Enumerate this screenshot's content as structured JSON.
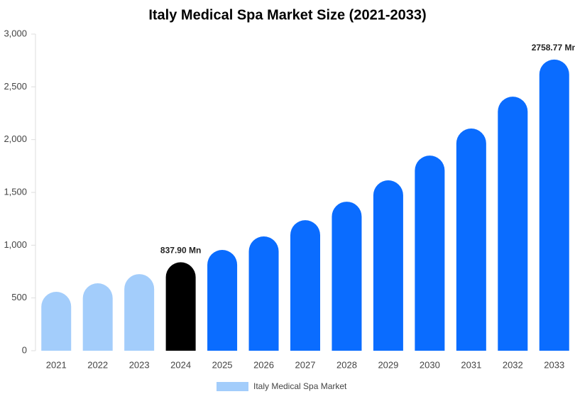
{
  "chart_data": {
    "type": "bar",
    "title": "Italy Medical Spa Market Size (2021-2033)",
    "categories": [
      "2021",
      "2022",
      "2023",
      "2024",
      "2025",
      "2026",
      "2027",
      "2028",
      "2029",
      "2030",
      "2031",
      "2032",
      "2033"
    ],
    "series": [
      {
        "name": "Italy Medical Spa Market",
        "color": "#a3cdfb",
        "values": [
          558,
          639,
          726,
          837.9,
          955,
          1083,
          1237,
          1412,
          1614,
          1849,
          2105,
          2407,
          2758.77
        ],
        "value_labels": [
          null,
          null,
          null,
          "837.90 Mn",
          null,
          null,
          null,
          null,
          null,
          null,
          null,
          null,
          "2758.77 Mn"
        ],
        "colors": [
          "#a3cdfb",
          "#a3cdfb",
          "#a3cdfb",
          "#000000",
          "#0a6cff",
          "#0a6cff",
          "#0a6cff",
          "#0a6cff",
          "#0a6cff",
          "#0a6cff",
          "#0a6cff",
          "#0a6cff",
          "#0a6cff"
        ]
      }
    ],
    "ylim": [
      0,
      3000
    ],
    "yticks": [
      0,
      {
        "value": 500,
        "label": "500"
      },
      {
        "value": 1000,
        "label": "1,000"
      },
      {
        "value": 1500,
        "label": "1,500"
      },
      {
        "value": 2000,
        "label": "2,000"
      },
      {
        "value": 2500,
        "label": "2,500"
      },
      {
        "value": 3000,
        "label": "3,000"
      }
    ],
    "grid": false
  }
}
